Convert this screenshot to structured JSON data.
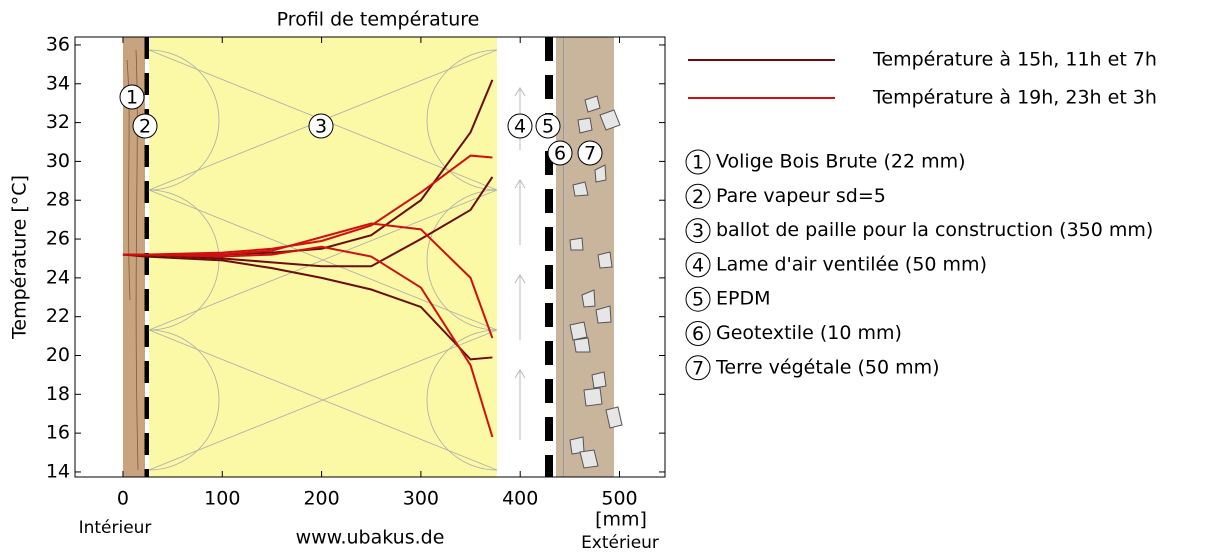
{
  "chart_data": {
    "type": "line",
    "title": "Profil de température",
    "xlabel": "[mm]",
    "ylabel": "Température [°C]",
    "x": [
      0,
      22,
      100,
      150,
      200,
      250,
      300,
      350,
      372
    ],
    "series": [
      {
        "name": "Température à 15h, 11h et 7h",
        "color": "#6b0d0d",
        "values": [
          25.2,
          25.2,
          25.2,
          25.3,
          25.5,
          26.2,
          28.0,
          31.5,
          34.2
        ]
      },
      {
        "name": null,
        "color": "#6b0d0d",
        "values": [
          25.2,
          25.2,
          25.0,
          24.8,
          24.6,
          24.6,
          26.0,
          27.5,
          29.2
        ]
      },
      {
        "name": null,
        "color": "#6b0d0d",
        "values": [
          25.2,
          25.1,
          24.9,
          24.5,
          24.0,
          23.4,
          22.5,
          19.8,
          19.9
        ]
      },
      {
        "name": "Température à 19h, 23h et 3h",
        "color": "#d01010",
        "values": [
          25.2,
          25.2,
          25.3,
          25.5,
          25.9,
          26.7,
          28.4,
          30.3,
          30.2
        ]
      },
      {
        "name": null,
        "color": "#d01010",
        "values": [
          25.2,
          25.2,
          25.2,
          25.4,
          26.1,
          26.8,
          26.5,
          24.0,
          20.9
        ]
      },
      {
        "name": null,
        "color": "#d01010",
        "values": [
          25.2,
          25.2,
          25.1,
          25.2,
          25.6,
          25.1,
          23.5,
          19.5,
          15.8
        ]
      }
    ],
    "xlim": [
      -48.3,
      545.8
    ],
    "ylim": [
      13.74,
      36.41
    ],
    "xticks": [
      0,
      100,
      200,
      300,
      400,
      500
    ],
    "yticks": [
      14,
      16,
      18,
      20,
      22,
      24,
      26,
      28,
      30,
      32,
      34,
      36
    ],
    "annotations": {
      "inside": "Intérieur",
      "outside": "Extérieur",
      "source": "www.ubakus.de"
    },
    "layers": [
      {
        "number": "1",
        "name": "Volige Bois Brute (22 mm)"
      },
      {
        "number": "2",
        "name": "Pare vapeur sd=5"
      },
      {
        "number": "3",
        "name": "ballot de paille pour la construction (350 mm)"
      },
      {
        "number": "4",
        "name": "Lame d'air ventilée (50 mm)"
      },
      {
        "number": "5",
        "name": "EPDM"
      },
      {
        "number": "6",
        "name": "Geotextile (10 mm)"
      },
      {
        "number": "7",
        "name": "Terre végétale (50 mm)"
      }
    ]
  }
}
